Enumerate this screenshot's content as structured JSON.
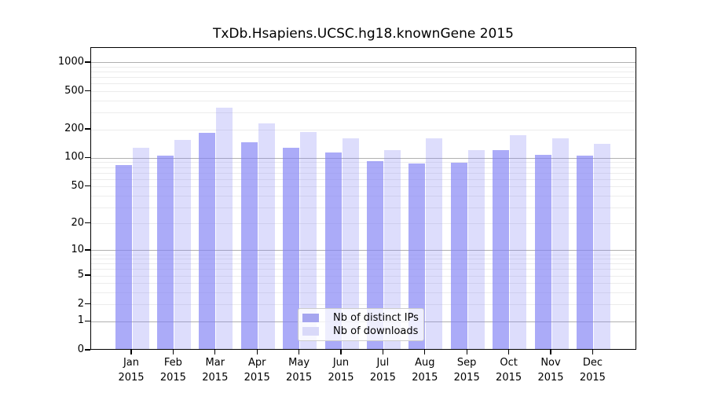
{
  "title": "TxDb.Hsapiens.UCSC.hg18.knownGene 2015",
  "chart_data": {
    "type": "bar",
    "title": "TxDb.Hsapiens.UCSC.hg18.knownGene 2015",
    "categories": [
      "Jan",
      "Feb",
      "Mar",
      "Apr",
      "May",
      "Jun",
      "Jul",
      "Aug",
      "Sep",
      "Oct",
      "Nov",
      "Dec"
    ],
    "x_tick_year": "2015",
    "series": [
      {
        "name": "Nb of distinct IPs",
        "key": "distinct-ips",
        "values": [
          82,
          103,
          178,
          143,
          124,
          111,
          90,
          85,
          87,
          118,
          105,
          102
        ]
      },
      {
        "name": "Nb of downloads",
        "key": "downloads",
        "values": [
          125,
          151,
          326,
          223,
          182,
          155,
          118,
          157,
          117,
          170,
          157,
          137
        ]
      }
    ],
    "yscale": "log10(value+1)",
    "yticks": [
      1000,
      500,
      200,
      100,
      50,
      20,
      10,
      5,
      2,
      1,
      0
    ],
    "ylim": [
      0,
      1458
    ],
    "grid": "horizontal major + log minor",
    "legend_position": "lower center",
    "xlabel": "",
    "ylabel": ""
  },
  "colors": {
    "bar_distinct_ips": "rgba(130,130,245,0.67)",
    "bar_downloads": "rgba(130,130,245,0.27)",
    "swatch_distinct_ips": "#a5a5ef",
    "swatch_downloads": "#d9d9f9",
    "grid_major": "#b0b0b0",
    "grid_minor": "#ececec",
    "axis_color": "#000000",
    "background": "#ffffff"
  }
}
